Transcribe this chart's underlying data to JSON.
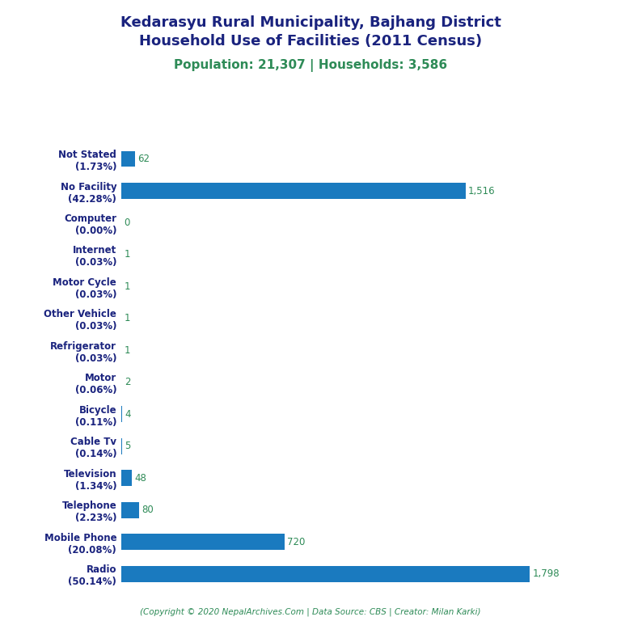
{
  "title_line1": "Kedarasyu Rural Municipality, Bajhang District",
  "title_line2": "Household Use of Facilities (2011 Census)",
  "subtitle": "Population: 21,307 | Households: 3,586",
  "categories": [
    "Not Stated\n(1.73%)",
    "No Facility\n(42.28%)",
    "Computer\n(0.00%)",
    "Internet\n(0.03%)",
    "Motor Cycle\n(0.03%)",
    "Other Vehicle\n(0.03%)",
    "Refrigerator\n(0.03%)",
    "Motor\n(0.06%)",
    "Bicycle\n(0.11%)",
    "Cable Tv\n(0.14%)",
    "Television\n(1.34%)",
    "Telephone\n(2.23%)",
    "Mobile Phone\n(20.08%)",
    "Radio\n(50.14%)"
  ],
  "values": [
    62,
    1516,
    0,
    1,
    1,
    1,
    1,
    2,
    4,
    5,
    48,
    80,
    720,
    1798
  ],
  "bar_color": "#1a7abf",
  "value_color": "#2e8b57",
  "title_color": "#1a237e",
  "subtitle_color": "#2e8b57",
  "footer_color": "#2e8b57",
  "footer_text": "(Copyright © 2020 NepalArchives.Com | Data Source: CBS | Creator: Milan Karki)",
  "background_color": "#ffffff",
  "xlim": [
    0,
    2050
  ],
  "bar_height": 0.5,
  "title_fontsize": 13,
  "subtitle_fontsize": 11,
  "label_fontsize": 8.5,
  "value_fontsize": 8.5,
  "footer_fontsize": 7.5
}
